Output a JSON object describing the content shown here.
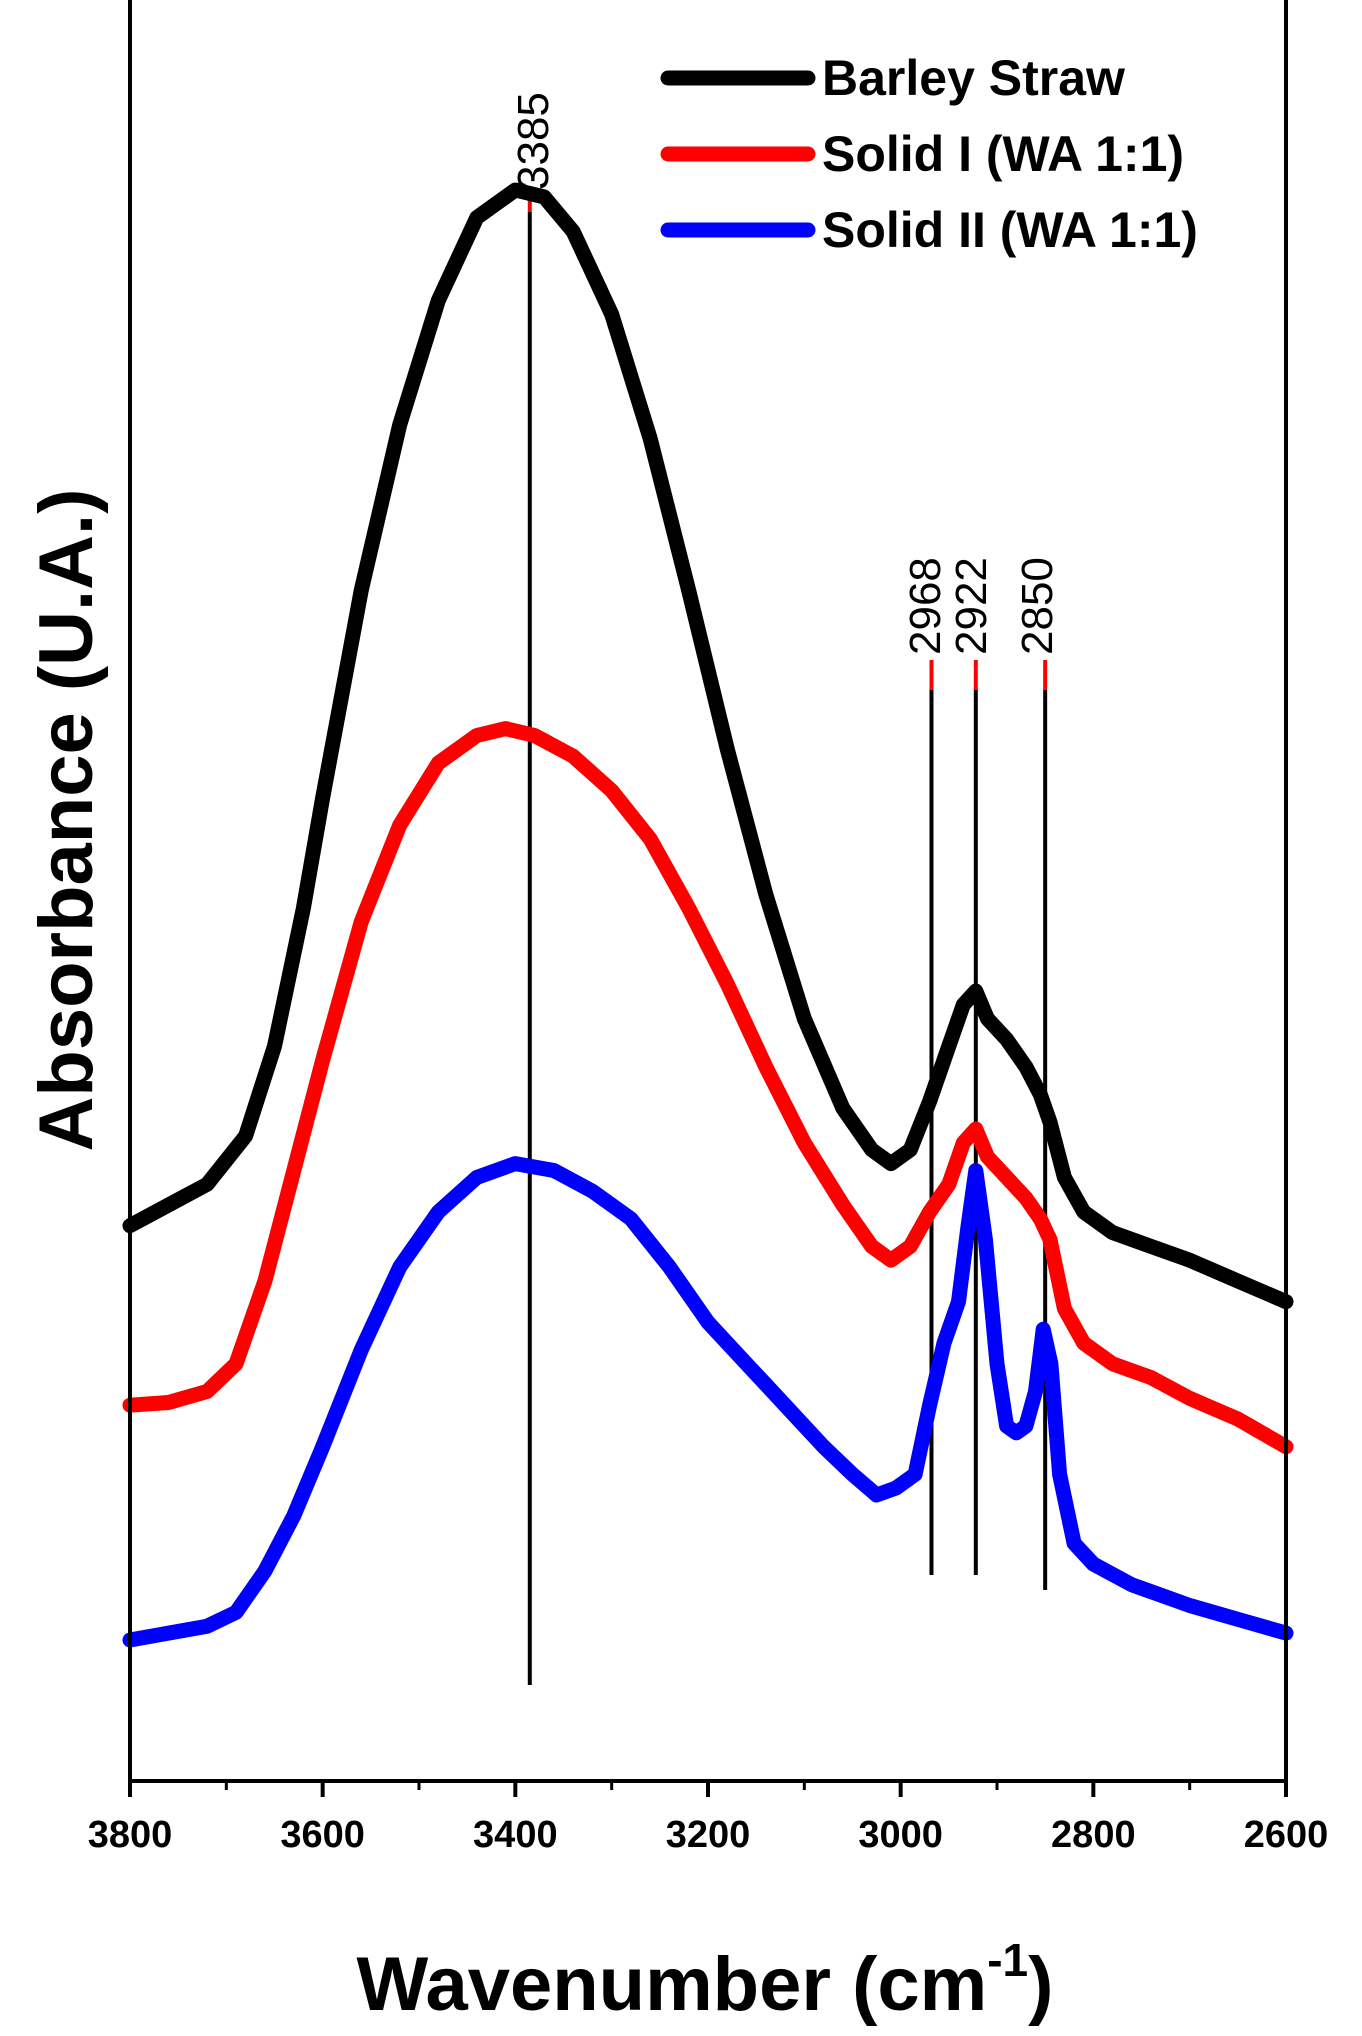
{
  "chart_data": {
    "type": "line",
    "xlabel_main": "Wavenumber (cm",
    "xlabel_sup": "-1",
    "xlabel_close": ")",
    "ylabel": "Absorbance (U.A.)",
    "xlim": [
      3800,
      2600
    ],
    "x_reversed": true,
    "y_ticks_shown": false,
    "grid": false,
    "legend_position": "top-right",
    "x_ticks": [
      "3800",
      "3600",
      "3400",
      "3200",
      "3000",
      "2800",
      "2600"
    ],
    "x_tick_values": [
      3800,
      3600,
      3400,
      3200,
      3000,
      2800,
      2600
    ],
    "x_minor_tick_values": [
      3700,
      3500,
      3300,
      3100,
      2900,
      2700
    ],
    "peak_markers": [
      {
        "label": "3385",
        "x": 3385
      },
      {
        "label": "2968",
        "x": 2968
      },
      {
        "label": "2922",
        "x": 2922
      },
      {
        "label": "2850",
        "x": 2850
      }
    ],
    "series": [
      {
        "name": "Barley Straw",
        "color": "#000000",
        "points": [
          [
            3800,
            0.3
          ],
          [
            3760,
            0.315
          ],
          [
            3720,
            0.33
          ],
          [
            3680,
            0.365
          ],
          [
            3650,
            0.43
          ],
          [
            3620,
            0.53
          ],
          [
            3600,
            0.61
          ],
          [
            3560,
            0.76
          ],
          [
            3520,
            0.88
          ],
          [
            3480,
            0.97
          ],
          [
            3440,
            1.03
          ],
          [
            3400,
            1.05
          ],
          [
            3370,
            1.045
          ],
          [
            3340,
            1.02
          ],
          [
            3300,
            0.96
          ],
          [
            3260,
            0.87
          ],
          [
            3220,
            0.76
          ],
          [
            3180,
            0.645
          ],
          [
            3140,
            0.54
          ],
          [
            3100,
            0.45
          ],
          [
            3060,
            0.385
          ],
          [
            3030,
            0.355
          ],
          [
            3010,
            0.345
          ],
          [
            2990,
            0.355
          ],
          [
            2970,
            0.39
          ],
          [
            2950,
            0.43
          ],
          [
            2935,
            0.46
          ],
          [
            2922,
            0.47
          ],
          [
            2910,
            0.45
          ],
          [
            2890,
            0.435
          ],
          [
            2870,
            0.415
          ],
          [
            2855,
            0.395
          ],
          [
            2845,
            0.375
          ],
          [
            2830,
            0.335
          ],
          [
            2810,
            0.31
          ],
          [
            2780,
            0.295
          ],
          [
            2740,
            0.285
          ],
          [
            2700,
            0.275
          ],
          [
            2650,
            0.26
          ],
          [
            2600,
            0.245
          ]
        ]
      },
      {
        "name": "Solid I (WA 1:1)",
        "color": "#ff0000",
        "points": [
          [
            3800,
            0.17
          ],
          [
            3760,
            0.172
          ],
          [
            3720,
            0.18
          ],
          [
            3690,
            0.2
          ],
          [
            3660,
            0.26
          ],
          [
            3630,
            0.34
          ],
          [
            3600,
            0.42
          ],
          [
            3560,
            0.52
          ],
          [
            3520,
            0.59
          ],
          [
            3480,
            0.635
          ],
          [
            3440,
            0.655
          ],
          [
            3410,
            0.66
          ],
          [
            3380,
            0.655
          ],
          [
            3340,
            0.64
          ],
          [
            3300,
            0.615
          ],
          [
            3260,
            0.58
          ],
          [
            3220,
            0.53
          ],
          [
            3180,
            0.475
          ],
          [
            3140,
            0.415
          ],
          [
            3100,
            0.36
          ],
          [
            3060,
            0.315
          ],
          [
            3030,
            0.285
          ],
          [
            3010,
            0.275
          ],
          [
            2990,
            0.285
          ],
          [
            2970,
            0.31
          ],
          [
            2950,
            0.33
          ],
          [
            2935,
            0.36
          ],
          [
            2922,
            0.37
          ],
          [
            2910,
            0.35
          ],
          [
            2890,
            0.335
          ],
          [
            2870,
            0.32
          ],
          [
            2855,
            0.305
          ],
          [
            2845,
            0.29
          ],
          [
            2830,
            0.24
          ],
          [
            2810,
            0.215
          ],
          [
            2780,
            0.2
          ],
          [
            2740,
            0.19
          ],
          [
            2700,
            0.175
          ],
          [
            2650,
            0.16
          ],
          [
            2600,
            0.14
          ]
        ]
      },
      {
        "name": "Solid II (WA 1:1)",
        "color": "#0000ff",
        "points": [
          [
            3800,
            0.0
          ],
          [
            3760,
            0.005
          ],
          [
            3720,
            0.01
          ],
          [
            3690,
            0.02
          ],
          [
            3660,
            0.05
          ],
          [
            3630,
            0.09
          ],
          [
            3600,
            0.14
          ],
          [
            3560,
            0.21
          ],
          [
            3520,
            0.27
          ],
          [
            3480,
            0.31
          ],
          [
            3440,
            0.335
          ],
          [
            3400,
            0.345
          ],
          [
            3360,
            0.34
          ],
          [
            3320,
            0.325
          ],
          [
            3280,
            0.305
          ],
          [
            3240,
            0.27
          ],
          [
            3200,
            0.23
          ],
          [
            3160,
            0.2
          ],
          [
            3120,
            0.17
          ],
          [
            3080,
            0.14
          ],
          [
            3050,
            0.12
          ],
          [
            3025,
            0.105
          ],
          [
            3005,
            0.11
          ],
          [
            2985,
            0.12
          ],
          [
            2970,
            0.17
          ],
          [
            2955,
            0.215
          ],
          [
            2940,
            0.245
          ],
          [
            2930,
            0.3
          ],
          [
            2922,
            0.34
          ],
          [
            2912,
            0.29
          ],
          [
            2900,
            0.2
          ],
          [
            2890,
            0.155
          ],
          [
            2880,
            0.15
          ],
          [
            2870,
            0.155
          ],
          [
            2860,
            0.18
          ],
          [
            2852,
            0.225
          ],
          [
            2844,
            0.2
          ],
          [
            2835,
            0.12
          ],
          [
            2820,
            0.07
          ],
          [
            2800,
            0.055
          ],
          [
            2760,
            0.04
          ],
          [
            2700,
            0.025
          ],
          [
            2650,
            0.015
          ],
          [
            2600,
            0.005
          ]
        ]
      }
    ]
  }
}
